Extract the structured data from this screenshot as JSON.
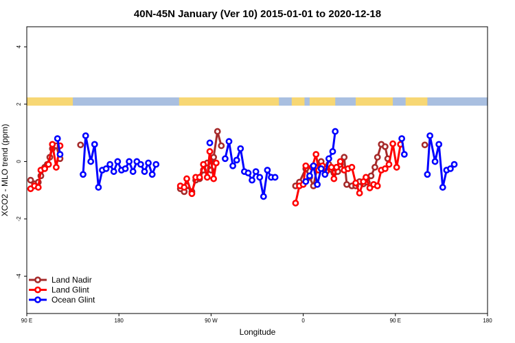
{
  "chart_data": {
    "type": "line",
    "title": "40N-45N January (Ver 10)   2015-01-01 to 2020-12-18",
    "xlabel": "Longitude",
    "ylabel": "XCO2 - MLO trend (ppm)",
    "xlim": [
      90,
      450
    ],
    "ylim": [
      -5.3,
      4.7
    ],
    "x_ticks": [
      {
        "value": 90,
        "label": "90 E"
      },
      {
        "value": 162,
        "label": "180"
      },
      {
        "value": 234,
        "label": "90 W"
      },
      {
        "value": 306,
        "label": "0"
      },
      {
        "value": 378,
        "label": "90 E"
      },
      {
        "value": 450,
        "label": "180"
      }
    ],
    "y_ticks": [
      -4,
      -2,
      0,
      2,
      4
    ],
    "land_ocean_band": {
      "land_color": "#f7d774",
      "ocean_color": "#a9bfe0",
      "land_segments": [
        [
          90,
          126
        ],
        [
          209,
          287
        ],
        [
          297,
          307
        ],
        [
          311,
          331
        ],
        [
          347,
          376
        ],
        [
          386,
          403
        ]
      ]
    },
    "legend": {
      "position": "bottom-left"
    },
    "series": [
      {
        "name": "Land Nadir",
        "color": "#a52a2a",
        "segments": [
          [
            [
              93,
              -0.65
            ],
            [
              96,
              -0.78
            ],
            [
              99,
              -0.72
            ],
            [
              101,
              -0.5
            ],
            [
              104,
              -0.2
            ],
            [
              106,
              -0.1
            ],
            [
              108,
              0.15
            ],
            [
              110,
              0.45
            ],
            [
              113,
              0.55
            ],
            [
              116,
              0.1
            ]
          ],
          [
            [
              132,
              0.58
            ]
          ],
          [
            [
              210,
              -0.95
            ],
            [
              213,
              -1.05
            ],
            [
              215,
              -0.85
            ],
            [
              219,
              -1.05
            ],
            [
              222,
              -0.65
            ],
            [
              225,
              -0.6
            ],
            [
              228,
              -0.3
            ],
            [
              231,
              -0.05
            ],
            [
              234,
              -0.3
            ],
            [
              236,
              0.15
            ],
            [
              239,
              1.05
            ],
            [
              242,
              0.55
            ]
          ],
          [
            [
              300,
              -0.85
            ],
            [
              303,
              -0.72
            ],
            [
              308,
              -0.25
            ],
            [
              311,
              -0.55
            ],
            [
              314,
              -0.85
            ],
            [
              317,
              -0.2
            ],
            [
              320,
              0.0
            ],
            [
              323,
              -0.25
            ],
            [
              326,
              -0.1
            ],
            [
              328,
              -0.28
            ],
            [
              330,
              -0.4
            ],
            [
              333,
              -0.35
            ],
            [
              335,
              -0.1
            ],
            [
              338,
              0.15
            ],
            [
              340,
              -0.8
            ],
            [
              344,
              -0.85
            ],
            [
              347,
              -0.85
            ],
            [
              350,
              -0.7
            ],
            [
              353,
              -0.78
            ],
            [
              356,
              -0.72
            ],
            [
              359,
              -0.5
            ],
            [
              362,
              -0.2
            ],
            [
              364,
              0.15
            ],
            [
              367,
              0.6
            ],
            [
              370,
              0.52
            ],
            [
              372,
              0.1
            ]
          ],
          [
            [
              401,
              0.58
            ]
          ]
        ]
      },
      {
        "name": "Land Glint",
        "color": "#ff0000",
        "segments": [
          [
            [
              93,
              -0.95
            ],
            [
              96,
              -0.85
            ],
            [
              99,
              -0.9
            ],
            [
              101,
              -0.3
            ],
            [
              104,
              -0.25
            ],
            [
              107,
              -0.1
            ],
            [
              110,
              0.6
            ],
            [
              113,
              -0.2
            ],
            [
              116,
              0.55
            ]
          ],
          [
            [
              210,
              -0.85
            ],
            [
              213,
              -0.9
            ],
            [
              215,
              -0.6
            ],
            [
              219,
              -1.12
            ],
            [
              222,
              -0.55
            ],
            [
              225,
              -0.55
            ],
            [
              228,
              -0.1
            ],
            [
              231,
              -0.55
            ],
            [
              233,
              0.35
            ],
            [
              236,
              -0.6
            ],
            [
              238,
              -0.05
            ]
          ],
          [
            [
              300,
              -1.45
            ],
            [
              303,
              -0.85
            ],
            [
              306,
              -0.8
            ],
            [
              308,
              -0.15
            ],
            [
              313,
              -0.2
            ],
            [
              316,
              0.25
            ],
            [
              318,
              -0.3
            ],
            [
              321,
              -0.15
            ],
            [
              324,
              -0.35
            ],
            [
              328,
              -0.2
            ],
            [
              330,
              -0.6
            ],
            [
              332,
              -0.2
            ],
            [
              335,
              0.0
            ],
            [
              338,
              -0.3
            ],
            [
              341,
              -0.25
            ],
            [
              344,
              -0.2
            ],
            [
              347,
              -0.75
            ],
            [
              350,
              -1.1
            ],
            [
              353,
              -0.7
            ],
            [
              355,
              -0.55
            ],
            [
              358,
              -0.92
            ],
            [
              361,
              -0.8
            ],
            [
              364,
              -0.85
            ],
            [
              367,
              -0.3
            ],
            [
              370,
              -0.25
            ],
            [
              373,
              -0.1
            ],
            [
              376,
              0.62
            ],
            [
              379,
              -0.2
            ],
            [
              382,
              0.6
            ]
          ]
        ]
      },
      {
        "name": "Ocean Glint",
        "color": "#0000ff",
        "segments": [
          [
            [
              114,
              0.8
            ],
            [
              116,
              0.25
            ]
          ],
          [
            [
              134,
              -0.45
            ],
            [
              136,
              0.9
            ],
            [
              140,
              0.0
            ],
            [
              143,
              0.6
            ],
            [
              146,
              -0.9
            ],
            [
              149,
              -0.3
            ],
            [
              152,
              -0.25
            ],
            [
              155,
              -0.1
            ],
            [
              158,
              -0.35
            ],
            [
              161,
              0.0
            ],
            [
              164,
              -0.3
            ],
            [
              167,
              -0.25
            ],
            [
              170,
              0.0
            ],
            [
              173,
              -0.35
            ],
            [
              176,
              0.0
            ],
            [
              179,
              -0.1
            ],
            [
              182,
              -0.35
            ],
            [
              185,
              -0.05
            ],
            [
              188,
              -0.45
            ],
            [
              191,
              -0.1
            ]
          ],
          [
            [
              233,
              0.65
            ]
          ],
          [
            [
              245,
              0.1
            ],
            [
              248,
              0.7
            ],
            [
              251,
              -0.15
            ],
            [
              254,
              0.05
            ],
            [
              257,
              0.45
            ],
            [
              260,
              -0.35
            ],
            [
              263,
              -0.4
            ],
            [
              266,
              -0.65
            ],
            [
              269,
              -0.35
            ],
            [
              272,
              -0.55
            ],
            [
              275,
              -1.22
            ],
            [
              278,
              -0.3
            ],
            [
              281,
              -0.55
            ],
            [
              284,
              -0.55
            ]
          ],
          [
            [
              308,
              -0.7
            ],
            [
              311,
              -0.5
            ],
            [
              314,
              -0.15
            ],
            [
              317,
              -0.8
            ],
            [
              320,
              -0.25
            ],
            [
              323,
              -0.45
            ],
            [
              326,
              0.1
            ],
            [
              329,
              0.35
            ],
            [
              331,
              1.05
            ]
          ],
          [
            [
              383,
              0.8
            ],
            [
              385,
              0.25
            ]
          ],
          [
            [
              403,
              -0.45
            ],
            [
              405,
              0.9
            ],
            [
              409,
              0.0
            ],
            [
              412,
              0.6
            ],
            [
              415,
              -0.9
            ],
            [
              418,
              -0.3
            ],
            [
              421,
              -0.25
            ],
            [
              424,
              -0.1
            ]
          ]
        ]
      }
    ]
  }
}
